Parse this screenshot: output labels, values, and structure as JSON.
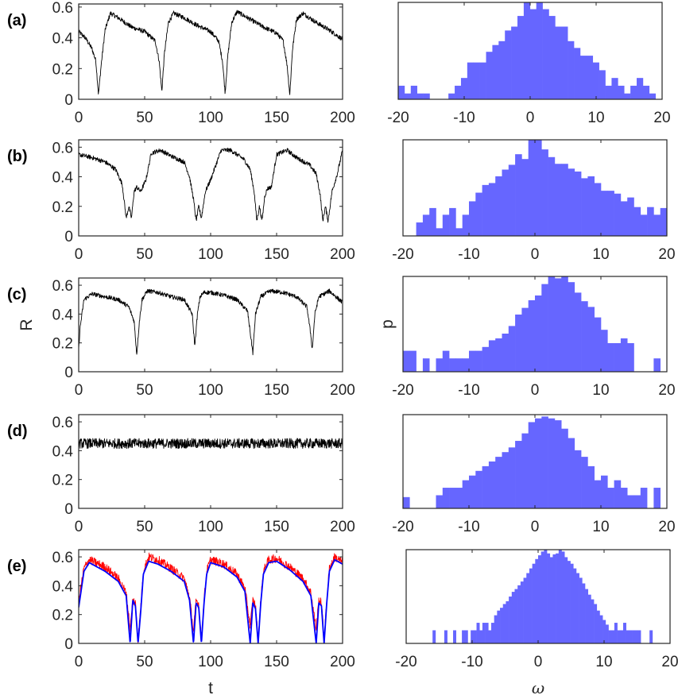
{
  "chart_data": [
    {
      "type": "line",
      "panel_label": "(a)",
      "xlim": [
        0,
        200
      ],
      "ylim": [
        0,
        0.62
      ],
      "xticks": [
        "0",
        "50",
        "100",
        "150",
        "200"
      ],
      "yticks": [
        "0",
        "0.2",
        "0.4",
        "0.6"
      ],
      "xlabel": "",
      "ylabel": "",
      "series": [
        {
          "color": "#000000",
          "noise": 0.03,
          "x": [
            0,
            5,
            10,
            13,
            15,
            17,
            20,
            24,
            30,
            40,
            50,
            58,
            61,
            63,
            65,
            68,
            72,
            80,
            90,
            100,
            106,
            109,
            111,
            113,
            116,
            120,
            130,
            140,
            150,
            155,
            158,
            160,
            162,
            165,
            170,
            180,
            190,
            200
          ],
          "y": [
            0.44,
            0.4,
            0.33,
            0.25,
            0.03,
            0.22,
            0.45,
            0.56,
            0.53,
            0.47,
            0.44,
            0.38,
            0.25,
            0.05,
            0.3,
            0.5,
            0.56,
            0.53,
            0.48,
            0.44,
            0.38,
            0.25,
            0.04,
            0.28,
            0.5,
            0.57,
            0.52,
            0.47,
            0.43,
            0.38,
            0.22,
            0.03,
            0.32,
            0.52,
            0.56,
            0.5,
            0.45,
            0.39
          ]
        }
      ]
    },
    {
      "type": "bar",
      "panel_label": "(a)",
      "xlim": [
        -20,
        20
      ],
      "ylim": [
        0,
        1
      ],
      "xticks": [
        "-20",
        "-10",
        "0",
        "10",
        "20"
      ],
      "xlabel": "",
      "ylabel": "",
      "bar_color": "#6666ff",
      "bin_edges": [
        -20,
        19
      ],
      "values": [
        0.14,
        0.06,
        0.14,
        0.06,
        0.06,
        0,
        0,
        0,
        0.06,
        0.14,
        0.22,
        0.38,
        0.38,
        0.38,
        0.49,
        0.56,
        0.6,
        0.71,
        0.75,
        0.86,
        1.0,
        0.93,
        1.0,
        0.93,
        0.86,
        0.75,
        0.75,
        0.6,
        0.53,
        0.45,
        0.45,
        0.38,
        0.3,
        0.14,
        0.22,
        0.14,
        0.06,
        0.14,
        0.22,
        0.14,
        0.06
      ]
    },
    {
      "type": "line",
      "panel_label": "(b)",
      "xlim": [
        0,
        200
      ],
      "ylim": [
        0,
        0.65
      ],
      "xticks": [
        "0",
        "50",
        "100",
        "150",
        "200"
      ],
      "yticks": [
        "0",
        "0.2",
        "0.4",
        "0.6"
      ],
      "xlabel": "",
      "ylabel": "",
      "series": [
        {
          "color": "#000000",
          "noise": 0.03,
          "x": [
            0,
            10,
            20,
            28,
            33,
            36,
            38,
            40,
            42,
            44,
            47,
            51,
            55,
            62,
            70,
            80,
            84,
            87,
            89,
            91,
            93,
            96,
            100,
            108,
            115,
            125,
            130,
            133,
            135,
            137,
            139,
            141,
            143,
            146,
            150,
            158,
            165,
            175,
            180,
            183,
            185,
            187,
            189,
            192,
            196,
            200
          ],
          "y": [
            0.55,
            0.53,
            0.5,
            0.45,
            0.35,
            0.12,
            0.2,
            0.12,
            0.3,
            0.33,
            0.3,
            0.38,
            0.56,
            0.58,
            0.54,
            0.5,
            0.4,
            0.25,
            0.1,
            0.2,
            0.12,
            0.3,
            0.38,
            0.58,
            0.58,
            0.52,
            0.45,
            0.3,
            0.1,
            0.2,
            0.1,
            0.27,
            0.32,
            0.33,
            0.55,
            0.58,
            0.53,
            0.48,
            0.42,
            0.28,
            0.1,
            0.2,
            0.1,
            0.3,
            0.42,
            0.58
          ]
        }
      ]
    },
    {
      "type": "bar",
      "panel_label": "(b)",
      "xlim": [
        -20,
        20
      ],
      "ylim": [
        0,
        1
      ],
      "xticks": [
        "-20",
        "-10",
        "0",
        "10",
        "20"
      ],
      "xlabel": "",
      "ylabel": "",
      "bar_color": "#6666ff",
      "bin_edges": [
        -20,
        20
      ],
      "values": [
        0,
        0,
        0.14,
        0.22,
        0.29,
        0.08,
        0.22,
        0.29,
        0.08,
        0.22,
        0.36,
        0.45,
        0.53,
        0.55,
        0.62,
        0.69,
        0.74,
        0.85,
        0.8,
        1.0,
        1.0,
        0.9,
        0.82,
        0.75,
        0.75,
        0.7,
        0.67,
        0.6,
        0.62,
        0.55,
        0.47,
        0.47,
        0.44,
        0.36,
        0.4,
        0.3,
        0.22,
        0.3,
        0.22,
        0.29
      ]
    },
    {
      "type": "line",
      "panel_label": "(c)",
      "xlim": [
        0,
        200
      ],
      "ylim": [
        0,
        0.65
      ],
      "xticks": [
        "0",
        "50",
        "100",
        "150",
        "200"
      ],
      "yticks": [
        "0",
        "0.2",
        "0.4",
        "0.6"
      ],
      "xlabel": "",
      "ylabel": "R",
      "series": [
        {
          "color": "#000000",
          "noise": 0.03,
          "x": [
            0,
            1,
            4,
            10,
            20,
            30,
            38,
            42,
            44,
            46,
            48,
            52,
            60,
            70,
            80,
            86,
            88,
            90,
            92,
            95,
            100,
            110,
            120,
            128,
            131,
            132,
            134,
            138,
            145,
            155,
            165,
            173,
            176,
            177,
            179,
            182,
            190,
            200
          ],
          "y": [
            0.15,
            0.3,
            0.5,
            0.54,
            0.52,
            0.5,
            0.45,
            0.35,
            0.12,
            0.35,
            0.5,
            0.56,
            0.55,
            0.52,
            0.5,
            0.4,
            0.18,
            0.4,
            0.52,
            0.55,
            0.55,
            0.53,
            0.5,
            0.42,
            0.2,
            0.13,
            0.4,
            0.52,
            0.56,
            0.55,
            0.52,
            0.45,
            0.25,
            0.15,
            0.4,
            0.52,
            0.56,
            0.48
          ]
        }
      ]
    },
    {
      "type": "bar",
      "panel_label": "(c)",
      "xlim": [
        -20,
        20
      ],
      "ylim": [
        0,
        1
      ],
      "xticks": [
        "-20",
        "-10",
        "0",
        "10",
        "20"
      ],
      "xlabel": "",
      "ylabel": "p",
      "bar_color": "#6666ff",
      "bin_edges": [
        -20,
        20
      ],
      "values": [
        0.22,
        0.22,
        0,
        0.14,
        0,
        0.14,
        0.22,
        0.14,
        0.14,
        0.14,
        0.22,
        0.22,
        0.26,
        0.33,
        0.35,
        0.4,
        0.48,
        0.6,
        0.67,
        0.75,
        0.8,
        0.92,
        1.0,
        0.98,
        1.0,
        0.94,
        0.83,
        0.74,
        0.68,
        0.57,
        0.44,
        0.3,
        0.3,
        0.35,
        0.3,
        0,
        0,
        0,
        0.14,
        0
      ]
    },
    {
      "type": "line",
      "panel_label": "(d)",
      "xlim": [
        0,
        200
      ],
      "ylim": [
        0,
        0.65
      ],
      "xticks": [
        "0",
        "50",
        "100",
        "150",
        "200"
      ],
      "yticks": [
        "0",
        "0.2",
        "0.4",
        "0.6"
      ],
      "xlabel": "",
      "ylabel": "",
      "series": [
        {
          "color": "#000000",
          "noise": 0.07,
          "x": [
            0,
            200
          ],
          "y": [
            0.45,
            0.45
          ]
        }
      ]
    },
    {
      "type": "bar",
      "panel_label": "(d)",
      "xlim": [
        -20,
        20
      ],
      "ylim": [
        0,
        1
      ],
      "xticks": [
        "-20",
        "-10",
        "0",
        "10",
        "20"
      ],
      "xlabel": "",
      "ylabel": "",
      "bar_color": "#6666ff",
      "bin_edges": [
        -20,
        20
      ],
      "values": [
        0.12,
        0,
        0,
        0,
        0,
        0.14,
        0.22,
        0.22,
        0.22,
        0.3,
        0.35,
        0.4,
        0.45,
        0.5,
        0.55,
        0.6,
        0.65,
        0.72,
        0.8,
        0.92,
        0.96,
        0.98,
        0.96,
        0.94,
        0.85,
        0.75,
        0.62,
        0.55,
        0.45,
        0.3,
        0.35,
        0.22,
        0.3,
        0.22,
        0.14,
        0.14,
        0.22,
        0.0,
        0.22,
        0.0
      ]
    },
    {
      "type": "line",
      "panel_label": "(e)",
      "xlim": [
        0,
        200
      ],
      "ylim": [
        0,
        0.65
      ],
      "xticks": [
        "0",
        "50",
        "100",
        "150",
        "200"
      ],
      "yticks": [
        "0",
        "0.2",
        "0.4",
        "0.6"
      ],
      "xlabel": "t",
      "ylabel": "",
      "series": [
        {
          "color": "#ff0000",
          "noise": 0.06,
          "x": [
            0,
            4,
            8,
            20,
            30,
            36,
            39,
            41,
            43,
            45,
            47,
            49,
            53,
            60,
            70,
            80,
            84,
            87,
            89,
            91,
            93,
            95,
            97,
            100,
            110,
            120,
            126,
            130,
            132,
            134,
            136,
            138,
            140,
            144,
            150,
            160,
            170,
            176,
            180,
            182,
            184,
            186,
            188,
            190,
            194,
            200
          ],
          "y": [
            0.3,
            0.52,
            0.58,
            0.53,
            0.45,
            0.35,
            0.1,
            0.3,
            0.28,
            0.02,
            0.25,
            0.5,
            0.6,
            0.58,
            0.52,
            0.45,
            0.32,
            0.08,
            0.3,
            0.27,
            0.02,
            0.3,
            0.5,
            0.58,
            0.55,
            0.48,
            0.38,
            0.12,
            0.3,
            0.26,
            0.02,
            0.3,
            0.5,
            0.58,
            0.59,
            0.53,
            0.45,
            0.35,
            0.1,
            0.3,
            0.28,
            0.02,
            0.3,
            0.52,
            0.6,
            0.56
          ]
        },
        {
          "color": "#0000ff",
          "noise": 0,
          "x": [
            0,
            4,
            8,
            20,
            30,
            36,
            39,
            41,
            43,
            45,
            47,
            49,
            53,
            60,
            70,
            80,
            84,
            87,
            89,
            91,
            93,
            95,
            97,
            100,
            110,
            120,
            126,
            130,
            132,
            134,
            136,
            138,
            140,
            144,
            150,
            160,
            170,
            176,
            180,
            182,
            184,
            186,
            188,
            190,
            194,
            200
          ],
          "y": [
            0.25,
            0.5,
            0.56,
            0.5,
            0.43,
            0.33,
            0.0,
            0.3,
            0.26,
            0.0,
            0.22,
            0.48,
            0.57,
            0.55,
            0.5,
            0.43,
            0.3,
            0.0,
            0.28,
            0.25,
            0.0,
            0.28,
            0.48,
            0.56,
            0.53,
            0.46,
            0.36,
            0.0,
            0.28,
            0.24,
            0.0,
            0.28,
            0.48,
            0.56,
            0.57,
            0.51,
            0.43,
            0.33,
            0.0,
            0.28,
            0.26,
            0.0,
            0.28,
            0.5,
            0.58,
            0.55
          ]
        }
      ]
    },
    {
      "type": "bar",
      "panel_label": "(e)",
      "xlim": [
        -20,
        20
      ],
      "ylim": [
        0,
        1
      ],
      "xticks": [
        "-20",
        "-10",
        "0",
        "10",
        "20"
      ],
      "xlabel": "ω",
      "ylabel": "",
      "bar_color": "#6666ff",
      "bin_edges": [
        -20,
        20
      ],
      "values": [
        0,
        0,
        0,
        0,
        0,
        0,
        0,
        0,
        0,
        0.14,
        0,
        0,
        0,
        0.14,
        0,
        0,
        0.14,
        0,
        0,
        0.14,
        0.14,
        0,
        0.14,
        0.14,
        0.22,
        0.14,
        0.22,
        0.22,
        0.14,
        0.22,
        0.3,
        0.35,
        0.38,
        0.42,
        0.45,
        0.5,
        0.55,
        0.58,
        0.62,
        0.66,
        0.7,
        0.75,
        0.8,
        0.85,
        0.9,
        0.94,
        0.98,
        1.0,
        0.96,
        0.92,
        0.95,
        0.96,
        1.0,
        0.98,
        0.92,
        0.88,
        0.85,
        0.8,
        0.75,
        0.7,
        0.64,
        0.58,
        0.52,
        0.47,
        0.42,
        0.35,
        0.3,
        0.25,
        0.2,
        0.14,
        0.14,
        0.22,
        0.14,
        0.14,
        0.22,
        0.14,
        0.14,
        0.14,
        0.14,
        0.14,
        0,
        0,
        0,
        0.14,
        0,
        0,
        0,
        0,
        0,
        0
      ]
    }
  ]
}
